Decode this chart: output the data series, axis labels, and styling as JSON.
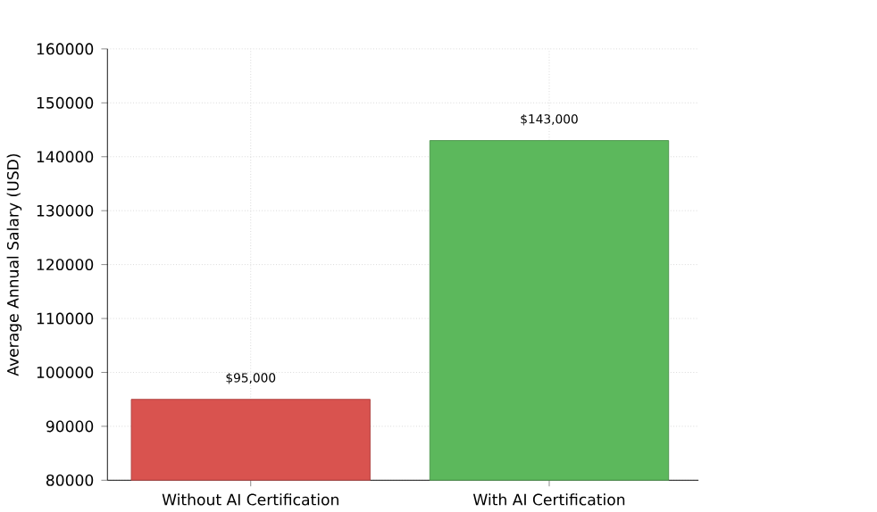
{
  "chart_data": {
    "type": "bar",
    "ylabel": "Average Annual Salary (USD)",
    "categories": [
      "Without AI Certification",
      "With AI Certification"
    ],
    "values": [
      95000,
      143000
    ],
    "colors": [
      "#d9534f",
      "#5cb85c"
    ],
    "value_labels": [
      "$95,000",
      "$143,000"
    ],
    "ylim": [
      80000,
      160000
    ],
    "yticks": [
      80000,
      90000,
      100000,
      110000,
      120000,
      130000,
      140000,
      150000,
      160000
    ],
    "grid": true
  }
}
